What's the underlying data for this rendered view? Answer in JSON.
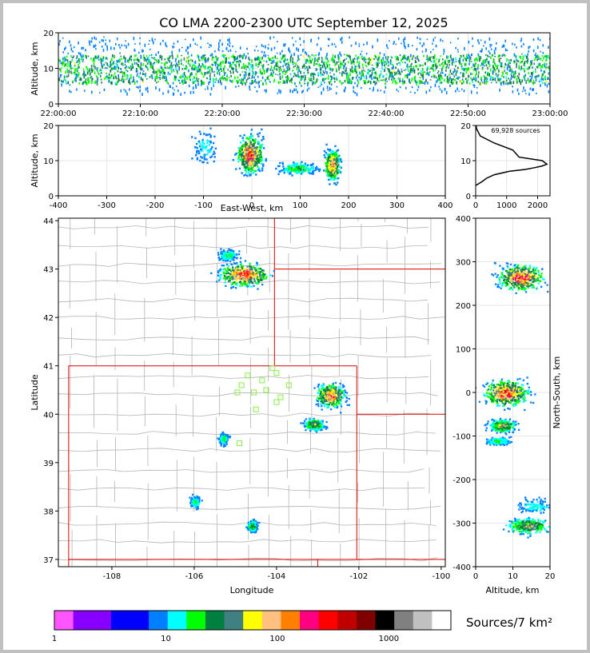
{
  "title": "CO LMA 2200-2300 UTC September 12, 2025",
  "colors": {
    "page_border": "#c0c0c0",
    "state_border": "#dd0000",
    "county_line": "#b4b4b4",
    "station": "#88ee44"
  },
  "chart_data": [
    {
      "id": "time-height",
      "type": "scatter",
      "xlabel": "",
      "ylabel": "Altitude, km",
      "ylim": [
        0,
        20
      ],
      "x_ticks": [
        "22:00:00",
        "22:10:00",
        "22:20:00",
        "22:30:00",
        "22:40:00",
        "22:50:00",
        "23:00:00"
      ],
      "y_ticks": [
        0,
        10,
        20
      ],
      "band_km": [
        3,
        19
      ],
      "dense_km": [
        6,
        14
      ]
    },
    {
      "id": "ew-height",
      "type": "scatter",
      "xlabel": "East-West, km",
      "ylabel": "Altitude, km",
      "xlim": [
        -400,
        400
      ],
      "ylim": [
        0,
        20
      ],
      "x_ticks": [
        -400,
        -300,
        -200,
        -100,
        0,
        100,
        200,
        300,
        400
      ],
      "y_ticks": [
        0,
        10,
        20
      ],
      "clusters": [
        {
          "x": -100,
          "dx": 20,
          "y": 14,
          "dy": 4,
          "weight": 0.2
        },
        {
          "x": -5,
          "dx": 20,
          "y": 12,
          "dy": 5,
          "weight": 1.0
        },
        {
          "x": 95,
          "dx": 30,
          "y": 8,
          "dy": 1.5,
          "weight": 0.4
        },
        {
          "x": 165,
          "dx": 12,
          "y": 9,
          "dy": 4,
          "weight": 0.9
        }
      ]
    },
    {
      "id": "altitude-histogram",
      "type": "line",
      "annotation": "69,928 sources",
      "xlim": [
        0,
        2400
      ],
      "ylim": [
        0,
        20
      ],
      "x_ticks": [
        0,
        1000,
        2000
      ],
      "y_ticks": [
        0,
        10,
        20
      ],
      "x": [
        10,
        200,
        350,
        600,
        1100,
        1600,
        1900,
        2150,
        2300,
        2150,
        1400,
        1200,
        600,
        150,
        30,
        10
      ],
      "y": [
        3,
        4,
        5,
        6,
        7,
        7.5,
        8,
        8.5,
        9,
        10,
        11,
        13,
        15,
        17,
        19,
        20
      ]
    },
    {
      "id": "plan-view",
      "type": "scatter",
      "xlabel": "Longitude",
      "ylabel": "Latitude",
      "xlim": [
        -109.3,
        -99.9
      ],
      "ylim": [
        36.85,
        44.05
      ],
      "x_ticks": [
        -108,
        -106,
        -104,
        -102,
        -100
      ],
      "y_ticks": [
        37,
        38,
        39,
        40,
        41,
        42,
        43,
        44
      ],
      "clusters": [
        {
          "lon": -104.8,
          "lat": 42.9,
          "dlon": 0.5,
          "dlat": 0.2,
          "weight": 1.0
        },
        {
          "lon": -105.2,
          "lat": 43.3,
          "dlon": 0.2,
          "dlat": 0.1,
          "weight": 0.3
        },
        {
          "lon": -102.7,
          "lat": 40.4,
          "dlon": 0.3,
          "dlat": 0.2,
          "weight": 0.9
        },
        {
          "lon": -103.1,
          "lat": 39.8,
          "dlon": 0.2,
          "dlat": 0.1,
          "weight": 0.6
        },
        {
          "lon": -104.6,
          "lat": 37.7,
          "dlon": 0.1,
          "dlat": 0.1,
          "weight": 0.5
        },
        {
          "lon": -106.0,
          "lat": 38.2,
          "dlon": 0.1,
          "dlat": 0.1,
          "weight": 0.3
        },
        {
          "lon": -105.3,
          "lat": 39.5,
          "dlon": 0.1,
          "dlat": 0.1,
          "weight": 0.3
        }
      ],
      "stations": [
        {
          "lon": -104.1,
          "lat": 40.95
        },
        {
          "lon": -104.7,
          "lat": 40.8
        },
        {
          "lon": -104.0,
          "lat": 40.85
        },
        {
          "lon": -104.85,
          "lat": 40.6
        },
        {
          "lon": -104.35,
          "lat": 40.7
        },
        {
          "lon": -103.7,
          "lat": 40.6
        },
        {
          "lon": -104.95,
          "lat": 40.45
        },
        {
          "lon": -104.55,
          "lat": 40.45
        },
        {
          "lon": -104.25,
          "lat": 40.5
        },
        {
          "lon": -103.9,
          "lat": 40.35
        },
        {
          "lon": -104.0,
          "lat": 40.25
        },
        {
          "lon": -104.5,
          "lat": 40.1
        },
        {
          "lon": -104.9,
          "lat": 39.4
        }
      ]
    },
    {
      "id": "ns-height",
      "type": "scatter",
      "xlabel": "Altitude, km",
      "ylabel": "North-South, km",
      "xlim": [
        0,
        20
      ],
      "ylim": [
        -400,
        400
      ],
      "x_ticks": [
        0,
        10,
        20
      ],
      "y_ticks": [
        -400,
        -300,
        -200,
        -100,
        0,
        100,
        200,
        300,
        400
      ],
      "clusters": [
        {
          "ns": 265,
          "dns": 25,
          "alt": 12,
          "dalt": 5,
          "weight": 1.0
        },
        {
          "ns": 0,
          "dns": 25,
          "alt": 8,
          "dalt": 5,
          "weight": 1.0
        },
        {
          "ns": -75,
          "dns": 12,
          "alt": 7,
          "dalt": 3,
          "weight": 0.7
        },
        {
          "ns": -110,
          "dns": 8,
          "alt": 6,
          "dalt": 3,
          "weight": 0.3
        },
        {
          "ns": -305,
          "dns": 15,
          "alt": 14,
          "dalt": 5,
          "weight": 0.6
        },
        {
          "ns": -260,
          "dns": 15,
          "alt": 16,
          "dalt": 4,
          "weight": 0.2
        }
      ]
    }
  ],
  "colorbar": {
    "label": "Sources/7 km²",
    "tick_labels": [
      "1",
      "10",
      "100",
      "1000"
    ],
    "colors": [
      "#ff55ff",
      "#8800ff",
      "#8800ff",
      "#0000ff",
      "#0000ff",
      "#0080ff",
      "#00ffff",
      "#00ff00",
      "#008040",
      "#408080",
      "#ffff00",
      "#ffc080",
      "#ff8000",
      "#ff0080",
      "#ff0000",
      "#c00000",
      "#800000",
      "#000000",
      "#808080",
      "#c0c0c0",
      "#ffffff"
    ]
  }
}
